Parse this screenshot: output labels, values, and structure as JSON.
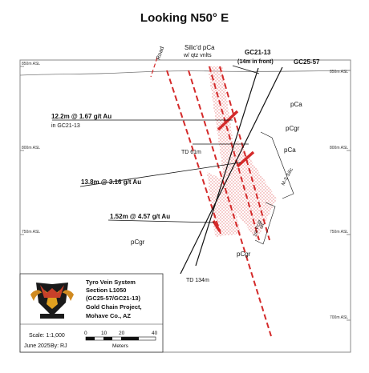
{
  "title": "Looking N50° E",
  "labels": {
    "road": "Road",
    "silic_pca": "Silic'd pCa",
    "silic_pca_sub": "w/ qtz vnlts",
    "gc21_13": "GC21-13",
    "gc21_13_sub": "(14m in front)",
    "gc25_57": "GC25-57",
    "pca_upper": "pCa",
    "pcgr_upper": "pCgr",
    "pca_mid": "pCa",
    "td61": "TD 61m",
    "ms_silic": "M-S Silic",
    "first_pcgr": "1st Pcgr",
    "alt": "alt.",
    "pcgr_left": "pCgr",
    "pcgr_bottom": "pCgr",
    "td134": "TD 134m"
  },
  "intercepts": [
    {
      "line1": "12.2m @ 1.67 g/t Au",
      "line2": "in GC21-13"
    },
    {
      "line1": "13.8m @ 3.16 g/t Au"
    },
    {
      "line1": "1.52m @ 4.57 g/t Au"
    }
  ],
  "elevations": {
    "left": [
      "850m ASL",
      "800m ASL",
      "750m ASL"
    ],
    "right": [
      "850m ASL",
      "800m ASL",
      "750m ASL",
      "700m ASL"
    ]
  },
  "legend": {
    "line1": "Tyro Vein System",
    "line2": "Section L1050",
    "line3": "(GC25-57/GC21-13)",
    "line4": "Gold Chain Project,",
    "line5": "Mohave Co., AZ",
    "scale": "Scale: 1:1,000",
    "date": "June 2025",
    "by": "By: RJ",
    "scale_ticks": [
      "0",
      "10",
      "20",
      "40"
    ],
    "scale_unit": "Meters"
  },
  "colors": {
    "red": "#d42a2a",
    "hatch": "#e05050",
    "line": "#111111",
    "frame": "#888888"
  }
}
